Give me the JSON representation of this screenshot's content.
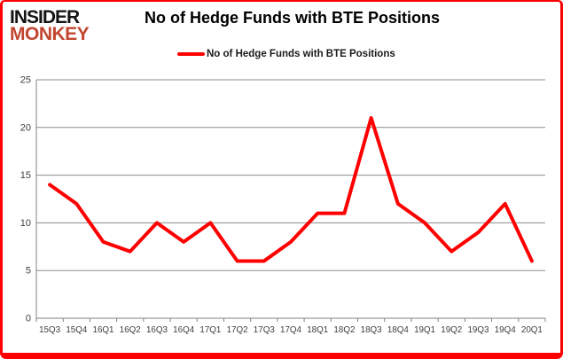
{
  "logo": {
    "line1": "INSIDER",
    "line2": "MONKEY"
  },
  "header": {
    "title": "No of Hedge Funds with BTE Positions"
  },
  "legend": {
    "label": "No of Hedge Funds with BTE Positions"
  },
  "chart_data": {
    "type": "line",
    "title": "No of Hedge Funds with BTE Positions",
    "categories": [
      "15Q3",
      "15Q4",
      "16Q1",
      "16Q2",
      "16Q3",
      "16Q4",
      "17Q1",
      "17Q2",
      "17Q3",
      "17Q4",
      "18Q1",
      "18Q2",
      "18Q3",
      "18Q4",
      "19Q1",
      "19Q2",
      "19Q3",
      "19Q4",
      "20Q1"
    ],
    "series": [
      {
        "name": "No of Hedge Funds with BTE Positions",
        "color": "#ff0000",
        "values": [
          14,
          12,
          8,
          7,
          10,
          8,
          10,
          6,
          6,
          8,
          11,
          11,
          21,
          12,
          10,
          7,
          9,
          12,
          6
        ]
      }
    ],
    "xlabel": "",
    "ylabel": "",
    "ylim": [
      0,
      25
    ],
    "yticks": [
      0,
      5,
      10,
      15,
      20,
      25
    ],
    "grid": true,
    "legend_position": "top-center"
  },
  "colors": {
    "frame_border": "#ff0000",
    "gridline": "#8c8c8c",
    "axis": "#808080",
    "tick_label": "#3d3d3d",
    "logo_insider": "#141414",
    "logo_monkey": "#c2452f",
    "background": "#ffffff"
  }
}
